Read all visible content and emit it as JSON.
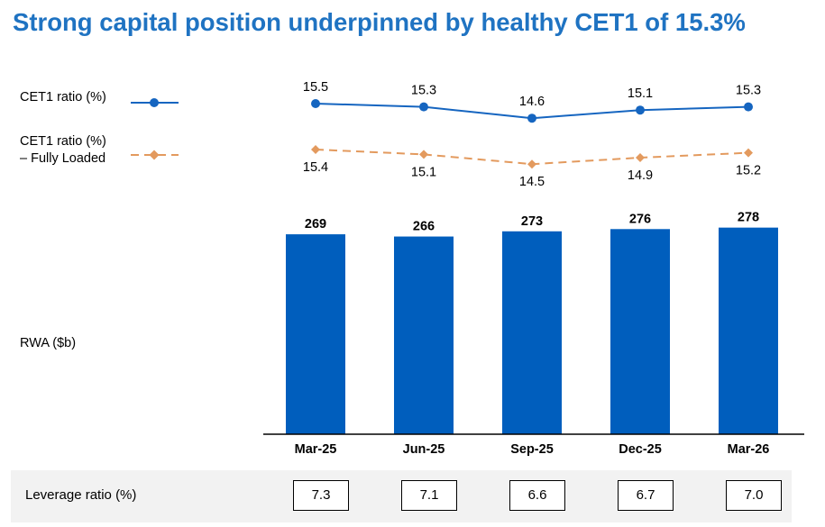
{
  "title": "Strong capital position underpinned by healthy CET1 of 15.3%",
  "legend": {
    "cet1": "CET1 ratio (%)",
    "cet1_fl_line1": "CET1 ratio (%)",
    "cet1_fl_line2": "– Fully Loaded",
    "rwa": "RWA ($b)"
  },
  "colors": {
    "title": "#1f73c2",
    "cet1_line": "#1565c0",
    "cet1_fl_line": "#e39a5e",
    "bar": "#005ebd"
  },
  "chart_data": [
    {
      "type": "line",
      "categories": [
        "Mar-25",
        "Jun-25",
        "Sep-25",
        "Dec-25",
        "Mar-26"
      ],
      "series": [
        {
          "name": "CET1 ratio (%)",
          "values": [
            15.5,
            15.3,
            14.6,
            15.1,
            15.3
          ],
          "style": "solid",
          "marker": "circle"
        },
        {
          "name": "CET1 ratio (%) – Fully Loaded",
          "values": [
            15.4,
            15.1,
            14.5,
            14.9,
            15.2
          ],
          "style": "dashed",
          "marker": "diamond"
        }
      ]
    },
    {
      "type": "bar",
      "categories": [
        "Mar-25",
        "Jun-25",
        "Sep-25",
        "Dec-25",
        "Mar-26"
      ],
      "values": [
        269,
        266,
        273,
        276,
        278
      ],
      "ylabel": "RWA ($b)"
    },
    {
      "type": "table",
      "label": "Leverage ratio (%)",
      "values": [
        "7.3",
        "7.1",
        "6.6",
        "6.7",
        "7.0"
      ]
    }
  ]
}
